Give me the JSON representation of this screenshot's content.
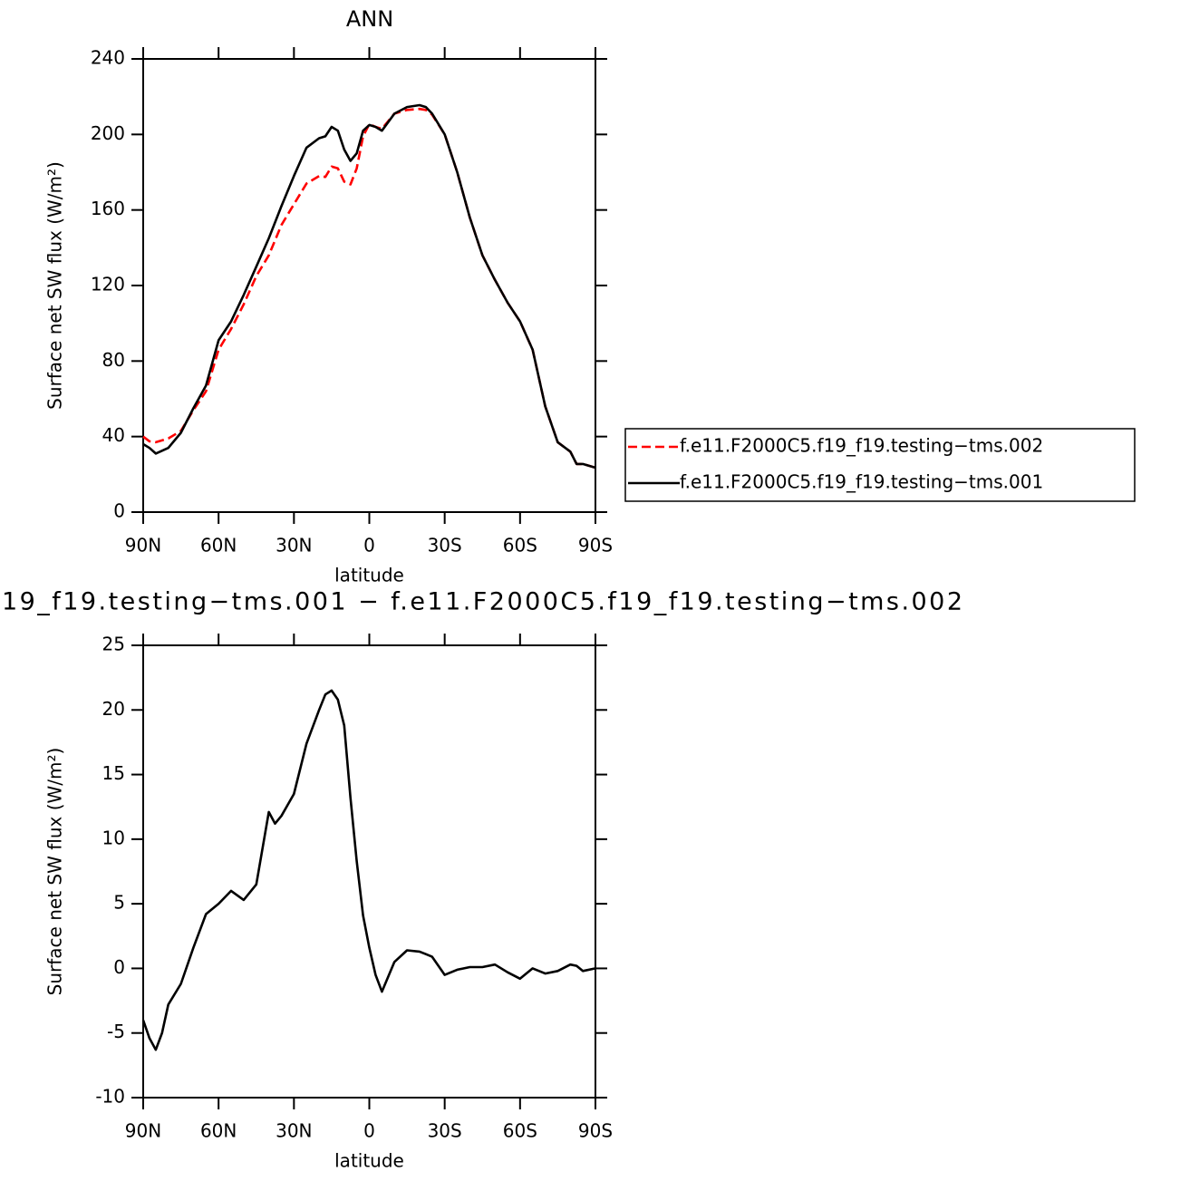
{
  "chart_data": [
    {
      "type": "line",
      "title": "ANN",
      "xlabel": "latitude",
      "ylabel": "Surface net SW flux (W/m²)",
      "x": [
        90,
        87.5,
        85,
        80,
        75,
        70,
        65,
        60,
        55,
        50,
        45,
        40,
        35,
        30,
        25,
        20,
        17.5,
        15,
        12.5,
        10,
        7.5,
        5,
        2.5,
        0,
        -2.5,
        -5,
        -10,
        -15,
        -20,
        -22.5,
        -25,
        -30,
        -35,
        -40,
        -45,
        -50,
        -55,
        -60,
        -65,
        -70,
        -75,
        -80,
        -82.5,
        -85,
        -90
      ],
      "series": [
        {
          "name": "f.e11.F2000C5.f19_f19.testing−tms.002",
          "color": "#ff0000",
          "dash": true,
          "values": [
            40,
            37.5,
            37,
            39,
            43,
            54,
            64,
            86,
            97,
            110,
            125,
            136,
            152,
            163,
            174,
            178,
            177.5,
            183,
            182,
            175,
            173.5,
            182,
            199,
            205.5,
            204,
            203,
            211,
            213,
            213.5,
            213,
            210.5,
            200,
            180,
            156,
            136,
            123,
            111,
            101,
            86,
            56,
            37,
            32,
            25.5,
            25.5,
            23.5
          ]
        },
        {
          "name": "f.e11.F2000C5.f19_f19.testing−tms.001",
          "color": "#000000",
          "dash": false,
          "values": [
            36,
            34,
            31,
            34,
            42,
            55,
            67,
            91,
            101,
            115,
            130,
            145,
            162,
            178,
            193,
            198,
            199,
            204,
            202,
            192,
            186,
            190,
            202,
            205,
            204,
            202,
            211,
            214.5,
            215.5,
            214.5,
            211,
            200,
            180,
            156,
            136,
            123,
            111,
            101,
            86,
            56,
            37,
            32,
            25.5,
            25.5,
            23.5
          ]
        }
      ],
      "xlim": [
        90,
        -90
      ],
      "xticks": [
        {
          "value": 90,
          "label": "90N"
        },
        {
          "value": 60,
          "label": "60N"
        },
        {
          "value": 30,
          "label": "30N"
        },
        0,
        {
          "value": -30,
          "label": "30S"
        },
        {
          "value": -60,
          "label": "60S"
        },
        {
          "value": -90,
          "label": "90S"
        }
      ],
      "ylim": [
        0,
        240
      ],
      "yticks": [
        0,
        40,
        80,
        120,
        160,
        200,
        240
      ],
      "legend": "outside-right"
    },
    {
      "type": "line",
      "title": "19_f19.testing−tms.001 − f.e11.F2000C5.f19_f19.testing−tms.002",
      "xlabel": "latitude",
      "ylabel": "Surface net SW flux (W/m²)",
      "x": [
        90,
        87.5,
        85,
        82.5,
        80,
        75,
        70,
        65,
        60,
        55,
        50,
        45,
        40,
        37.5,
        35,
        30,
        25,
        20,
        17.5,
        15,
        12.5,
        10,
        7.5,
        5,
        2.5,
        0,
        -2.5,
        -5,
        -10,
        -15,
        -20,
        -22.5,
        -25,
        -30,
        -35,
        -40,
        -45,
        -50,
        -55,
        -60,
        -65,
        -70,
        -75,
        -80,
        -82.5,
        -85,
        -90
      ],
      "series": [
        {
          "color": "#000000",
          "dash": false,
          "values": [
            -4,
            -5.4,
            -6.3,
            -5,
            -2.8,
            -1.2,
            1.6,
            4.2,
            5,
            6,
            5.3,
            6.5,
            12.1,
            11.2,
            11.8,
            13.5,
            17.4,
            20,
            21.2,
            21.5,
            20.8,
            18.8,
            13.2,
            8.3,
            4.1,
            1.6,
            -0.5,
            -1.8,
            0.5,
            1.4,
            1.3,
            1.1,
            0.9,
            -0.5,
            -0.1,
            0.1,
            0.1,
            0.3,
            -0.3,
            -0.8,
            0,
            -0.4,
            -0.2,
            0.3,
            0.2,
            -0.2,
            0
          ]
        }
      ],
      "xlim": [
        90,
        -90
      ],
      "xticks": [
        {
          "value": 90,
          "label": "90N"
        },
        {
          "value": 60,
          "label": "60N"
        },
        {
          "value": 30,
          "label": "30N"
        },
        0,
        {
          "value": -30,
          "label": "30S"
        },
        {
          "value": -60,
          "label": "60S"
        },
        {
          "value": -90,
          "label": "90S"
        }
      ],
      "ylim": [
        -10,
        25
      ],
      "yticks": [
        -10,
        -5,
        0,
        5,
        10,
        15,
        20,
        25
      ]
    }
  ]
}
